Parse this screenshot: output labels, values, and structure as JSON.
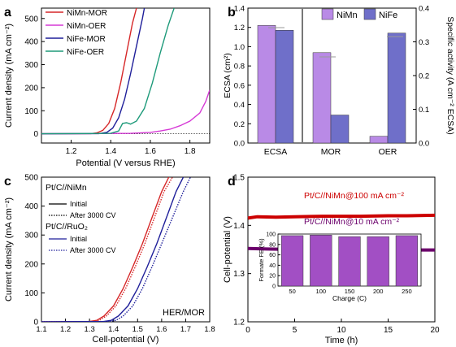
{
  "colors": {
    "nimn_mor": "#d62728",
    "nimn_oer": "#d63ad6",
    "nife_mor": "#1f1f9a",
    "nife_oer": "#1e9a7a",
    "bar_nimn": "#b98ae6",
    "bar_nife": "#6f6fc9",
    "bar_fe": "#a24fc4",
    "line_100": "#cc0000",
    "line_10": "#6b006b"
  },
  "chart_data": [
    {
      "panel": "a",
      "type": "line",
      "xlabel": "Potential (V versus RHE)",
      "ylabel": "Current density (mA cm⁻²)",
      "xlim": [
        1.05,
        1.9
      ],
      "ylim": [
        -40,
        545
      ],
      "xticks": [
        "1.2",
        "1.4",
        "1.6",
        "1.8"
      ],
      "yticks": [
        "0",
        "100",
        "200",
        "300",
        "400",
        "500"
      ],
      "legend": [
        "NiMn-MOR",
        "NiMn-OER",
        "NiFe-MOR",
        "NiFe-OER"
      ],
      "series": [
        {
          "name": "NiMn-MOR",
          "color_key": "nimn_mor",
          "points": [
            [
              1.05,
              0
            ],
            [
              1.3,
              1
            ],
            [
              1.33,
              4
            ],
            [
              1.36,
              15
            ],
            [
              1.39,
              45
            ],
            [
              1.42,
              110
            ],
            [
              1.45,
              220
            ],
            [
              1.48,
              350
            ],
            [
              1.51,
              480
            ],
            [
              1.53,
              545
            ]
          ]
        },
        {
          "name": "NiMn-OER",
          "color_key": "nimn_oer",
          "points": [
            [
              1.05,
              0
            ],
            [
              1.5,
              2
            ],
            [
              1.6,
              6
            ],
            [
              1.65,
              12
            ],
            [
              1.7,
              20
            ],
            [
              1.75,
              35
            ],
            [
              1.8,
              55
            ],
            [
              1.85,
              90
            ],
            [
              1.88,
              140
            ],
            [
              1.9,
              190
            ]
          ]
        },
        {
          "name": "NiFe-MOR",
          "color_key": "nife_mor",
          "points": [
            [
              1.05,
              0
            ],
            [
              1.34,
              1
            ],
            [
              1.38,
              6
            ],
            [
              1.41,
              25
            ],
            [
              1.44,
              70
            ],
            [
              1.47,
              150
            ],
            [
              1.5,
              260
            ],
            [
              1.53,
              380
            ],
            [
              1.56,
              500
            ],
            [
              1.57,
              545
            ]
          ]
        },
        {
          "name": "NiFe-OER",
          "color_key": "nife_oer",
          "points": [
            [
              1.05,
              0
            ],
            [
              1.4,
              2
            ],
            [
              1.44,
              12
            ],
            [
              1.46,
              45
            ],
            [
              1.48,
              48
            ],
            [
              1.5,
              42
            ],
            [
              1.53,
              55
            ],
            [
              1.57,
              110
            ],
            [
              1.61,
              220
            ],
            [
              1.65,
              350
            ],
            [
              1.69,
              470
            ],
            [
              1.72,
              545
            ]
          ]
        }
      ]
    },
    {
      "panel": "b",
      "type": "bar",
      "categories": [
        "ECSA",
        "MOR",
        "OER"
      ],
      "ylabel": "ECSA (cm²)",
      "ylabel_right": "Specific activity (A cm⁻² ECSA)",
      "ylim": [
        0,
        1.4
      ],
      "ylim_right": [
        0,
        0.4
      ],
      "yticks": [
        "0.0",
        "0.2",
        "0.4",
        "0.6",
        "0.8",
        "1.0",
        "1.2",
        "1.4"
      ],
      "yticks_right": [
        "0.0",
        "0.1",
        "0.2",
        "0.3",
        "0.4"
      ],
      "legend": [
        "NiMn",
        "NiFe"
      ],
      "series": [
        {
          "name": "NiMn",
          "color_key": "bar_nimn",
          "values": [
            1.22,
            0.268,
            0.02
          ],
          "axis": [
            "left",
            "right",
            "right"
          ]
        },
        {
          "name": "NiFe",
          "color_key": "bar_nife",
          "values": [
            1.17,
            0.083,
            0.326
          ],
          "axis": [
            "left",
            "right",
            "right"
          ]
        }
      ]
    },
    {
      "panel": "c",
      "type": "line",
      "xlabel": "Cell-potential (V)",
      "ylabel": "Current density (mA cm⁻²)",
      "xlim": [
        1.1,
        1.8
      ],
      "ylim": [
        0,
        500
      ],
      "xticks": [
        "1.1",
        "1.2",
        "1.3",
        "1.4",
        "1.5",
        "1.6",
        "1.7",
        "1.8"
      ],
      "yticks": [
        "0",
        "100",
        "200",
        "300",
        "400",
        "500"
      ],
      "annotation": "HER/MOR",
      "legend_group_1": "Pt/C//NiMn",
      "legend_group_2": "Pt/C//RuO₂",
      "legend_initial": "Initial",
      "legend_after": "After 3000 CV",
      "series": [
        {
          "name": "Pt/C//NiMn Initial",
          "color_key": "nimn_mor",
          "dash": false,
          "points": [
            [
              1.1,
              0
            ],
            [
              1.3,
              1
            ],
            [
              1.33,
              5
            ],
            [
              1.36,
              20
            ],
            [
              1.4,
              55
            ],
            [
              1.44,
              115
            ],
            [
              1.48,
              190
            ],
            [
              1.52,
              270
            ],
            [
              1.56,
              360
            ],
            [
              1.6,
              450
            ],
            [
              1.63,
              500
            ]
          ]
        },
        {
          "name": "Pt/C//NiMn After 3000 CV",
          "color_key": "nimn_mor",
          "dash": true,
          "points": [
            [
              1.1,
              0
            ],
            [
              1.31,
              1
            ],
            [
              1.34,
              5
            ],
            [
              1.37,
              20
            ],
            [
              1.41,
              55
            ],
            [
              1.45,
              115
            ],
            [
              1.49,
              190
            ],
            [
              1.53,
              270
            ],
            [
              1.57,
              360
            ],
            [
              1.61,
              450
            ],
            [
              1.645,
              500
            ]
          ]
        },
        {
          "name": "Pt/C//RuO₂ Initial",
          "color_key": "nife_mor",
          "dash": false,
          "points": [
            [
              1.1,
              0
            ],
            [
              1.36,
              1
            ],
            [
              1.39,
              5
            ],
            [
              1.42,
              20
            ],
            [
              1.46,
              55
            ],
            [
              1.5,
              115
            ],
            [
              1.54,
              190
            ],
            [
              1.58,
              270
            ],
            [
              1.62,
              360
            ],
            [
              1.66,
              450
            ],
            [
              1.69,
              500
            ]
          ]
        },
        {
          "name": "Pt/C//RuO₂ After 3000 CV",
          "color_key": "nife_mor",
          "dash": true,
          "points": [
            [
              1.1,
              0
            ],
            [
              1.38,
              1
            ],
            [
              1.41,
              5
            ],
            [
              1.44,
              20
            ],
            [
              1.48,
              55
            ],
            [
              1.52,
              115
            ],
            [
              1.56,
              190
            ],
            [
              1.6,
              270
            ],
            [
              1.645,
              360
            ],
            [
              1.69,
              450
            ],
            [
              1.72,
              500
            ]
          ]
        }
      ]
    },
    {
      "panel": "d",
      "type": "line",
      "xlabel": "Time (h)",
      "ylabel": "Cell-potential (V)",
      "xlim": [
        0,
        20
      ],
      "ylim": [
        1.2,
        1.5
      ],
      "xticks": [
        "0",
        "5",
        "10",
        "15",
        "20"
      ],
      "yticks": [
        "1.2",
        "1.3",
        "1.4",
        "1.5"
      ],
      "series": [
        {
          "name": "Pt/C//NiMn@100 mA cm⁻²",
          "color_key": "line_100",
          "points": [
            [
              0,
              1.415
            ],
            [
              1,
              1.418
            ],
            [
              3,
              1.417
            ],
            [
              5,
              1.418
            ],
            [
              8,
              1.419
            ],
            [
              10,
              1.419
            ],
            [
              12,
              1.419
            ],
            [
              15,
              1.42
            ],
            [
              17,
              1.42
            ],
            [
              20,
              1.421
            ]
          ]
        },
        {
          "name": "Pt/C//NiMn@10 mA cm⁻²",
          "color_key": "line_10",
          "points": [
            [
              0,
              1.352
            ],
            [
              2,
              1.351
            ],
            [
              5,
              1.35
            ],
            [
              10,
              1.35
            ],
            [
              15,
              1.349
            ],
            [
              20,
              1.349
            ]
          ]
        }
      ],
      "inset": {
        "type": "bar",
        "xlabel": "Charge (C)",
        "ylabel": "Formate FE (%)",
        "categories": [
          "50",
          "100",
          "150",
          "200",
          "250"
        ],
        "values": [
          97.0,
          98.0,
          95.0,
          95.0,
          97.0
        ],
        "ylim": [
          0,
          100
        ],
        "yticks": [
          "0",
          "20",
          "40",
          "60",
          "80",
          "100"
        ]
      }
    }
  ],
  "panel_labels": [
    "a",
    "b",
    "c",
    "d"
  ],
  "label_d_100": "Pt/C//NiMn@100 mA cm⁻²",
  "label_d_10": "Pt/C//NiMn@10 mA cm⁻²"
}
